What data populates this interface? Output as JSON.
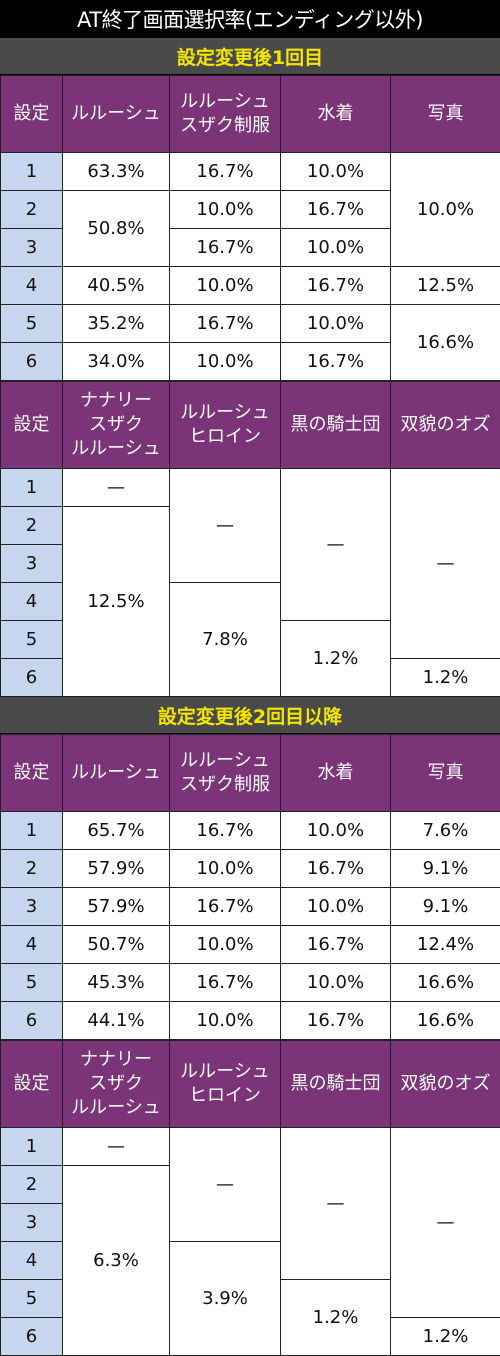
{
  "title": "AT終了画面選択率(エンディング以外)",
  "section1": "設定変更後1回目",
  "section2": "設定変更後2回目以降",
  "headers_a": [
    "設定",
    "ルルーシュ",
    "ルルーシュ\nスザク制服",
    "水着",
    "写真"
  ],
  "headers_b": [
    "設定",
    "ナナリー\nスザク\nルルーシュ",
    "ルルーシュ\nヒロイン",
    "黒の騎士団",
    "双貌のオズ"
  ],
  "settings": [
    "1",
    "2",
    "3",
    "4",
    "5",
    "6"
  ],
  "s1a": {
    "lelouch": [
      "63.3%",
      "50.8%",
      "40.5%",
      "35.2%",
      "34.0%"
    ],
    "suzaku": [
      "16.7%",
      "10.0%",
      "16.7%",
      "10.0%",
      "16.7%",
      "10.0%"
    ],
    "mizugi": [
      "10.0%",
      "16.7%",
      "10.0%",
      "16.7%",
      "10.0%",
      "16.7%"
    ],
    "shashin": [
      "10.0%",
      "12.5%",
      "16.6%"
    ]
  },
  "s1b": {
    "nunnally": [
      "—",
      "12.5%"
    ],
    "heroine": [
      "—",
      "7.8%"
    ],
    "kishidan": [
      "—",
      "1.2%"
    ],
    "oz": [
      "—",
      "1.2%"
    ]
  },
  "s2a": {
    "lelouch": [
      "65.7%",
      "57.9%",
      "57.9%",
      "50.7%",
      "45.3%",
      "44.1%"
    ],
    "suzaku": [
      "16.7%",
      "10.0%",
      "16.7%",
      "10.0%",
      "16.7%",
      "10.0%"
    ],
    "mizugi": [
      "10.0%",
      "16.7%",
      "10.0%",
      "16.7%",
      "10.0%",
      "16.7%"
    ],
    "shashin": [
      "7.6%",
      "9.1%",
      "9.1%",
      "12.4%",
      "16.6%",
      "16.6%"
    ]
  },
  "s2b": {
    "nunnally": [
      "—",
      "6.3%"
    ],
    "heroine": [
      "—",
      "3.9%"
    ],
    "kishidan": [
      "—",
      "1.2%"
    ],
    "oz": [
      "—",
      "1.2%"
    ]
  },
  "colors": {
    "header_bg": "#7b3478",
    "setting_bg": "#c6d6ee",
    "section_text": "#f4e600"
  }
}
